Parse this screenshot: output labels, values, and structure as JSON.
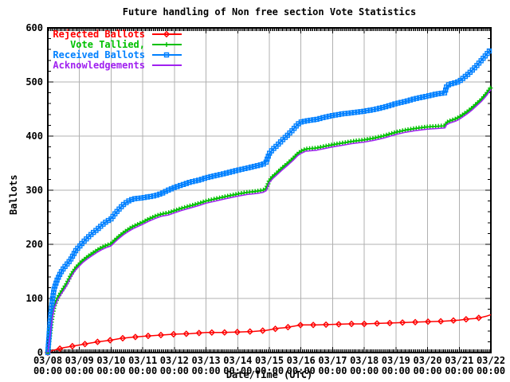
{
  "legend": {
    "items": [
      {
        "label": "Rejected Ballots",
        "color": "#ff0000",
        "marker": "diamond"
      },
      {
        "label": "Vote Tallied,",
        "color": "#00c000",
        "marker": "plus"
      },
      {
        "label": "Received Ballots",
        "color": "#0080ff",
        "marker": "square"
      },
      {
        "label": "Acknowledgements",
        "color": "#a020f0",
        "marker": "none"
      }
    ]
  },
  "chart_data": {
    "type": "line",
    "title": "Future handling of Non free section Vote Statistics",
    "xlabel": "Date/Time (UTC)",
    "ylabel": "Ballots",
    "ylim": [
      0,
      600
    ],
    "xlim_days": [
      0,
      14
    ],
    "grid": "on",
    "grid_color": "#b0b0b0",
    "border_color": "#000000",
    "legend_position": "top-left-inside",
    "x_ticks": [
      "03/08",
      "03/09",
      "03/10",
      "03/11",
      "03/12",
      "03/13",
      "03/14",
      "03/15",
      "03/16",
      "03/17",
      "03/18",
      "03/19",
      "03/20",
      "03/21",
      "03/22"
    ],
    "x_tick_sublabel": "00:00",
    "y_ticks": [
      0,
      100,
      200,
      300,
      400,
      500,
      600
    ],
    "series": [
      {
        "name": "Rejected Ballots",
        "color": "#ff0000",
        "marker": "diamond",
        "x": [
          0,
          0.1,
          0.3,
          0.5,
          0.7,
          1,
          1.3,
          1.6,
          2,
          2.3,
          2.6,
          3,
          3.5,
          4,
          4.5,
          5,
          5.5,
          6,
          6.5,
          6.9,
          7.1,
          7.3,
          7.5,
          7.7,
          7.9,
          8,
          8.5,
          9,
          9.5,
          10,
          10.5,
          11,
          11.5,
          12,
          12.5,
          13,
          13.3,
          13.5,
          13.7,
          13.85,
          14
        ],
        "y": [
          0,
          3,
          6,
          9,
          11,
          14,
          17,
          20,
          23,
          26,
          28,
          30,
          32,
          34,
          35,
          37,
          37,
          38,
          39,
          41,
          43,
          45,
          46,
          48,
          50,
          51,
          51,
          52,
          53,
          53,
          54,
          55,
          56,
          57,
          58,
          60,
          62,
          63,
          65,
          67,
          70
        ]
      },
      {
        "name": "Vote Tallied,",
        "color": "#00c000",
        "marker": "plus",
        "x": [
          0,
          0.05,
          0.1,
          0.15,
          0.2,
          0.3,
          0.4,
          0.5,
          0.6,
          0.7,
          0.8,
          0.9,
          1,
          1.1,
          1.25,
          1.4,
          1.55,
          1.7,
          1.85,
          2,
          2.1,
          2.25,
          2.4,
          2.55,
          2.7,
          3,
          3.2,
          3.4,
          3.6,
          3.8,
          4,
          4.2,
          4.5,
          4.8,
          5,
          5.3,
          5.6,
          6,
          6.3,
          6.6,
          6.8,
          6.9,
          7,
          7.1,
          7.25,
          7.4,
          7.6,
          7.75,
          7.9,
          8,
          8.15,
          8.5,
          8.75,
          9,
          9.3,
          9.6,
          10,
          10.3,
          10.6,
          11,
          11.3,
          11.6,
          12,
          12.3,
          12.55,
          12.6,
          12.7,
          12.9,
          13,
          13.1,
          13.25,
          13.4,
          13.55,
          13.7,
          13.85,
          14
        ],
        "y": [
          0,
          25,
          50,
          70,
          85,
          100,
          110,
          119,
          128,
          140,
          150,
          158,
          164,
          170,
          177,
          183,
          189,
          194,
          198,
          201,
          207,
          215,
          222,
          228,
          233,
          241,
          247,
          252,
          256,
          258,
          262,
          266,
          271,
          276,
          280,
          284,
          288,
          293,
          296,
          298,
          300,
          303,
          318,
          325,
          333,
          341,
          351,
          359,
          368,
          372,
          376,
          378,
          381,
          384,
          387,
          390,
          393,
          396,
          400,
          407,
          411,
          414,
          417,
          418,
          419,
          425,
          428,
          432,
          435,
          439,
          445,
          452,
          460,
          468,
          478,
          490
        ]
      },
      {
        "name": "Received Ballots",
        "color": "#0080ff",
        "marker": "square",
        "x": [
          0,
          0.05,
          0.1,
          0.15,
          0.2,
          0.3,
          0.4,
          0.5,
          0.6,
          0.7,
          0.8,
          0.9,
          1,
          1.1,
          1.25,
          1.4,
          1.55,
          1.7,
          1.85,
          2,
          2.1,
          2.25,
          2.4,
          2.55,
          2.7,
          3,
          3.2,
          3.4,
          3.6,
          3.8,
          4,
          4.2,
          4.5,
          4.8,
          5,
          5.3,
          5.6,
          6,
          6.3,
          6.6,
          6.8,
          6.9,
          7,
          7.1,
          7.25,
          7.4,
          7.6,
          7.75,
          7.9,
          8,
          8.15,
          8.5,
          8.75,
          9,
          9.3,
          9.6,
          10,
          10.3,
          10.6,
          11,
          11.3,
          11.6,
          12,
          12.3,
          12.55,
          12.6,
          12.7,
          12.9,
          13,
          13.1,
          13.25,
          13.4,
          13.55,
          13.7,
          13.85,
          14
        ],
        "y": [
          0,
          40,
          75,
          100,
          118,
          135,
          147,
          156,
          163,
          170,
          180,
          190,
          196,
          203,
          212,
          220,
          227,
          235,
          242,
          247,
          255,
          265,
          274,
          280,
          284,
          286,
          288,
          290,
          294,
          300,
          305,
          309,
          315,
          319,
          323,
          327,
          331,
          337,
          341,
          345,
          348,
          352,
          368,
          375,
          383,
          392,
          403,
          412,
          422,
          426,
          428,
          431,
          435,
          438,
          441,
          443,
          446,
          449,
          453,
          460,
          464,
          469,
          474,
          478,
          480,
          492,
          496,
          499,
          501,
          506,
          513,
          521,
          530,
          540,
          550,
          561
        ]
      },
      {
        "name": "Acknowledgements",
        "color": "#a020f0",
        "marker": "none",
        "x": [
          0,
          0.05,
          0.1,
          0.15,
          0.2,
          0.3,
          0.4,
          0.5,
          0.6,
          0.7,
          0.8,
          0.9,
          1,
          1.1,
          1.25,
          1.4,
          1.55,
          1.7,
          1.85,
          2,
          2.1,
          2.25,
          2.4,
          2.55,
          2.7,
          3,
          3.2,
          3.4,
          3.6,
          3.8,
          4,
          4.2,
          4.5,
          4.8,
          5,
          5.3,
          5.6,
          6,
          6.3,
          6.6,
          6.8,
          6.9,
          7,
          7.1,
          7.25,
          7.4,
          7.6,
          7.75,
          7.9,
          8,
          8.15,
          8.5,
          8.75,
          9,
          9.3,
          9.6,
          10,
          10.3,
          10.6,
          11,
          11.3,
          11.6,
          12,
          12.3,
          12.55,
          12.6,
          12.7,
          12.9,
          13,
          13.1,
          13.25,
          13.4,
          13.55,
          13.7,
          13.85,
          14
        ],
        "y": [
          0,
          21,
          46,
          66,
          81,
          96,
          106,
          115,
          124,
          136,
          146,
          154,
          160,
          166,
          173,
          179,
          185,
          190,
          194,
          197,
          203,
          211,
          218,
          224,
          229,
          237,
          243,
          248,
          252,
          254,
          258,
          262,
          267,
          272,
          276,
          280,
          284,
          289,
          292,
          294,
          296,
          299,
          314,
          321,
          329,
          337,
          347,
          355,
          364,
          368,
          372,
          374,
          377,
          380,
          383,
          386,
          389,
          392,
          396,
          403,
          407,
          410,
          413,
          414,
          415,
          421,
          424,
          428,
          431,
          435,
          441,
          448,
          456,
          464,
          474,
          486
        ]
      }
    ]
  }
}
